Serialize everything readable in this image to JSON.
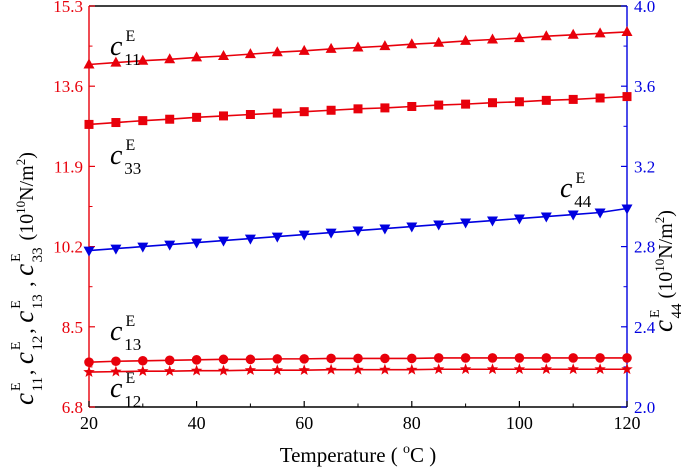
{
  "chart_data": {
    "type": "line",
    "x_axis": {
      "label": "Temperature ( ",
      "label_sup": "o",
      "label_tail": "C )",
      "range": [
        20,
        120
      ],
      "ticks": [
        "20",
        "40",
        "60",
        "80",
        "100",
        "120"
      ],
      "color": "#000000"
    },
    "y_left": {
      "range": [
        6.8,
        15.3
      ],
      "ticks": [
        "6.8",
        "8.5",
        "10.2",
        "11.9",
        "13.6",
        "15.3"
      ],
      "color": "#e8000b",
      "label_parts": [
        {
          "sym": "c",
          "sup": "E",
          "sub": "11"
        },
        {
          "sep": ", "
        },
        {
          "sym": "c",
          "sup": "E",
          "sub": "12"
        },
        {
          "sep": ", "
        },
        {
          "sym": "c",
          "sup": "E",
          "sub": "13"
        },
        {
          "sep": " , "
        },
        {
          "sym": "c",
          "sup": "E",
          "sub": "33"
        }
      ],
      "label_unit": "(10",
      "label_unit_sup": "10",
      "label_unit_mid": "N/m",
      "label_unit_sup2": "2",
      "label_unit_end": ")"
    },
    "y_right": {
      "range": [
        2.0,
        4.0
      ],
      "ticks": [
        "2.0",
        "2.4",
        "2.8",
        "3.2",
        "3.6",
        "4.0"
      ],
      "color": "#0000e0",
      "label_sym": "c",
      "label_sup": "E",
      "label_sub": "44",
      "label_unit": "(10",
      "label_unit_sup": "10",
      "label_unit_mid": "N/m",
      "label_unit_sup2": "2",
      "label_unit_end": ")"
    },
    "x": [
      20,
      25,
      30,
      35,
      40,
      45,
      50,
      55,
      60,
      65,
      70,
      75,
      80,
      85,
      90,
      95,
      100,
      105,
      110,
      115,
      120
    ],
    "series": [
      {
        "name": "c11E",
        "sym": "c",
        "sup": "E",
        "sub": "11",
        "axis": "left",
        "marker": "triangle-up",
        "color": "#e8000b",
        "values": [
          14.06,
          14.1,
          14.14,
          14.17,
          14.21,
          14.24,
          14.28,
          14.32,
          14.35,
          14.39,
          14.42,
          14.45,
          14.49,
          14.52,
          14.56,
          14.59,
          14.62,
          14.66,
          14.69,
          14.72,
          14.75
        ]
      },
      {
        "name": "c33E",
        "sym": "c",
        "sup": "E",
        "sub": "33",
        "axis": "left",
        "marker": "square",
        "color": "#e8000b",
        "values": [
          12.79,
          12.83,
          12.87,
          12.9,
          12.94,
          12.97,
          13.0,
          13.03,
          13.06,
          13.09,
          13.12,
          13.14,
          13.17,
          13.2,
          13.22,
          13.25,
          13.27,
          13.3,
          13.32,
          13.35,
          13.38
        ]
      },
      {
        "name": "c44E",
        "sym": "c",
        "sup": "E",
        "sub": "44",
        "axis": "right",
        "marker": "triangle-down",
        "color": "#0000e0",
        "values": [
          2.78,
          2.79,
          2.8,
          2.81,
          2.82,
          2.83,
          2.84,
          2.85,
          2.86,
          2.87,
          2.88,
          2.89,
          2.9,
          2.91,
          2.92,
          2.93,
          2.94,
          2.95,
          2.96,
          2.97,
          2.99
        ]
      },
      {
        "name": "c13E",
        "sym": "c",
        "sup": "E",
        "sub": "13",
        "axis": "left",
        "marker": "circle",
        "color": "#e8000b",
        "values": [
          7.75,
          7.77,
          7.78,
          7.79,
          7.8,
          7.81,
          7.81,
          7.82,
          7.82,
          7.83,
          7.83,
          7.83,
          7.83,
          7.84,
          7.84,
          7.84,
          7.84,
          7.84,
          7.84,
          7.84,
          7.84
        ]
      },
      {
        "name": "c12E",
        "sym": "c",
        "sup": "E",
        "sub": "12",
        "axis": "left",
        "marker": "star",
        "color": "#e8000b",
        "values": [
          7.54,
          7.55,
          7.56,
          7.56,
          7.57,
          7.57,
          7.58,
          7.58,
          7.58,
          7.59,
          7.59,
          7.59,
          7.59,
          7.6,
          7.6,
          7.6,
          7.6,
          7.6,
          7.6,
          7.6,
          7.6
        ]
      }
    ],
    "grid": false,
    "legend": "inline labels next to curves"
  }
}
